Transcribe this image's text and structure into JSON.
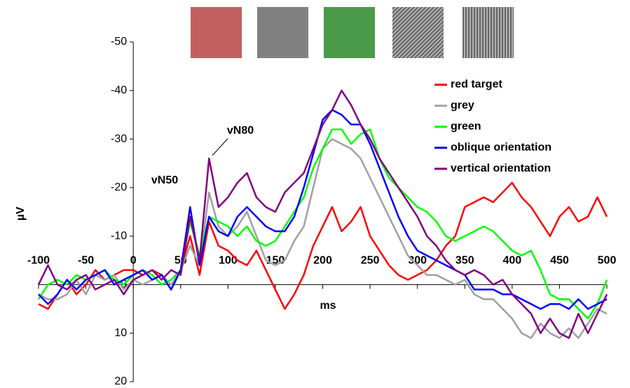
{
  "chart_data": {
    "type": "line",
    "x_label": "ms",
    "y_label": "µV",
    "annotations": [
      "vN50",
      "vN80"
    ],
    "xlim": [
      -100,
      500
    ],
    "xticks": [
      -100,
      -50,
      0,
      50,
      100,
      150,
      200,
      250,
      300,
      350,
      400,
      450,
      500
    ],
    "ylim": [
      -50,
      20
    ],
    "yticks": [
      -50,
      -40,
      -30,
      -20,
      -10,
      0,
      10,
      20
    ],
    "y_inverted": true,
    "x": [
      -100,
      -90,
      -80,
      -70,
      -60,
      -50,
      -40,
      -30,
      -20,
      -10,
      0,
      10,
      20,
      30,
      40,
      50,
      60,
      70,
      80,
      90,
      100,
      110,
      120,
      130,
      140,
      150,
      160,
      170,
      180,
      190,
      200,
      210,
      220,
      230,
      240,
      250,
      260,
      270,
      280,
      290,
      300,
      310,
      320,
      330,
      340,
      350,
      360,
      370,
      380,
      390,
      400,
      410,
      420,
      430,
      440,
      450,
      460,
      470,
      480,
      490,
      500
    ],
    "series": [
      {
        "name": "red target",
        "color": "#ff0000",
        "values": [
          4,
          5,
          2,
          -1,
          2,
          0,
          -3,
          -1,
          -2,
          -3,
          -3,
          -2,
          -3,
          -2,
          1,
          -3,
          -10,
          -2,
          -13,
          -8,
          -7,
          -5,
          -4,
          -7,
          -3,
          1,
          5,
          2,
          -2,
          -8,
          -12,
          -16,
          -11,
          -13,
          -16,
          -10,
          -7,
          -4,
          -2,
          -1,
          -2,
          -3,
          -5,
          -8,
          -10,
          -16,
          -17,
          -18,
          -17,
          -19,
          -21,
          -18,
          -16,
          -13,
          -10,
          -14,
          -16,
          -13,
          -14,
          -18,
          -14
        ]
      },
      {
        "name": "grey",
        "color": "#a0a0a0",
        "values": [
          2,
          3,
          3,
          2,
          -1,
          2,
          -2,
          -1,
          -2,
          1,
          -1,
          0,
          -1,
          -2,
          0,
          -3,
          -8,
          -4,
          -19,
          -12,
          -10,
          -12,
          -15,
          -10,
          -5,
          -4,
          -5,
          -9,
          -12,
          -20,
          -28,
          -30,
          -29,
          -28,
          -26,
          -22,
          -18,
          -14,
          -10,
          -6,
          -4,
          -2,
          -2,
          -1,
          0,
          -1,
          2,
          3,
          3,
          5,
          7,
          10,
          11,
          8,
          10,
          11,
          9,
          11,
          8,
          5,
          6
        ]
      },
      {
        "name": "green",
        "color": "#00ff00",
        "values": [
          3,
          0,
          -1,
          0,
          -2,
          -1,
          -2,
          -3,
          -1,
          0,
          -2,
          -3,
          -2,
          0,
          -1,
          -3,
          -13,
          -6,
          -14,
          -13,
          -12,
          -10,
          -12,
          -9,
          -8,
          -9,
          -12,
          -15,
          -18,
          -24,
          -28,
          -32,
          -32,
          -29,
          -31,
          -32,
          -26,
          -22,
          -20,
          -18,
          -16,
          -15,
          -13,
          -10,
          -9,
          -10,
          -11,
          -12,
          -11,
          -9,
          -7,
          -6,
          -7,
          -3,
          2,
          3,
          3,
          5,
          7,
          4,
          -1
        ]
      },
      {
        "name": "oblique orientation",
        "color": "#0000ff",
        "values": [
          2,
          4,
          2,
          -1,
          1,
          -1,
          -2,
          -3,
          0,
          -1,
          -2,
          -3,
          -1,
          -2,
          1,
          -3,
          -16,
          -4,
          -14,
          -11,
          -10,
          -14,
          -16,
          -14,
          -12,
          -11,
          -11,
          -14,
          -20,
          -27,
          -34,
          -36,
          -35,
          -33,
          -33,
          -29,
          -24,
          -19,
          -14,
          -10,
          -7,
          -6,
          -5,
          -4,
          -3,
          -2,
          1,
          1,
          1,
          2,
          2,
          3,
          4,
          5,
          4,
          4,
          5,
          3,
          5,
          4,
          3
        ]
      },
      {
        "name": "vertical orientation",
        "color": "#800080",
        "values": [
          0,
          -4,
          0,
          1,
          -1,
          -2,
          1,
          0,
          -1,
          2,
          -1,
          -2,
          -3,
          -1,
          -3,
          -2,
          -14,
          -5,
          -26,
          -16,
          -18,
          -21,
          -23,
          -18,
          -16,
          -15,
          -19,
          -21,
          -23,
          -28,
          -33,
          -36,
          -40,
          -37,
          -33,
          -30,
          -26,
          -23,
          -20,
          -17,
          -14,
          -10,
          -8,
          -5,
          -3,
          -2,
          -3,
          -2,
          0,
          -1,
          2,
          4,
          6,
          10,
          7,
          10,
          11,
          6,
          10,
          6,
          2
        ]
      }
    ]
  }
}
